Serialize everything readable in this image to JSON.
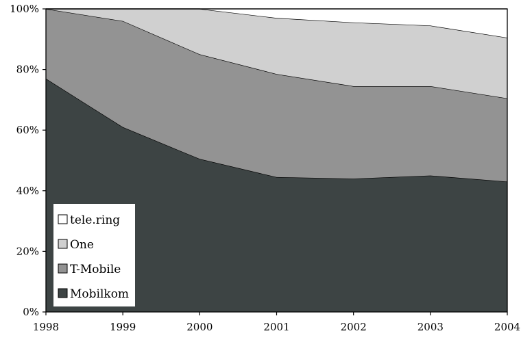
{
  "chart_data": {
    "type": "area",
    "stacked": true,
    "percent": true,
    "title": "",
    "xlabel": "",
    "ylabel": "",
    "x": [
      "1998",
      "1999",
      "2000",
      "2001",
      "2002",
      "2003",
      "2004"
    ],
    "ylim": [
      0,
      100
    ],
    "y_ticks": [
      "0%",
      "20%",
      "40%",
      "60%",
      "80%",
      "100%"
    ],
    "grid": false,
    "legend_position": "bottom-left",
    "series": [
      {
        "name": "Mobilkom",
        "color": "#3d4444",
        "values": [
          77,
          61,
          50.5,
          44.5,
          44,
          45,
          43
        ]
      },
      {
        "name": "T-Mobile",
        "color": "#939393",
        "values": [
          23,
          35,
          34.5,
          34,
          30.5,
          29.5,
          27.5
        ]
      },
      {
        "name": "One",
        "color": "#d0d0d0",
        "values": [
          0,
          4,
          15,
          18.5,
          21,
          20,
          20
        ]
      },
      {
        "name": "tele.ring",
        "color": "#ffffff",
        "values": [
          0,
          0,
          0,
          3,
          4.5,
          5.5,
          9.5
        ]
      }
    ]
  }
}
